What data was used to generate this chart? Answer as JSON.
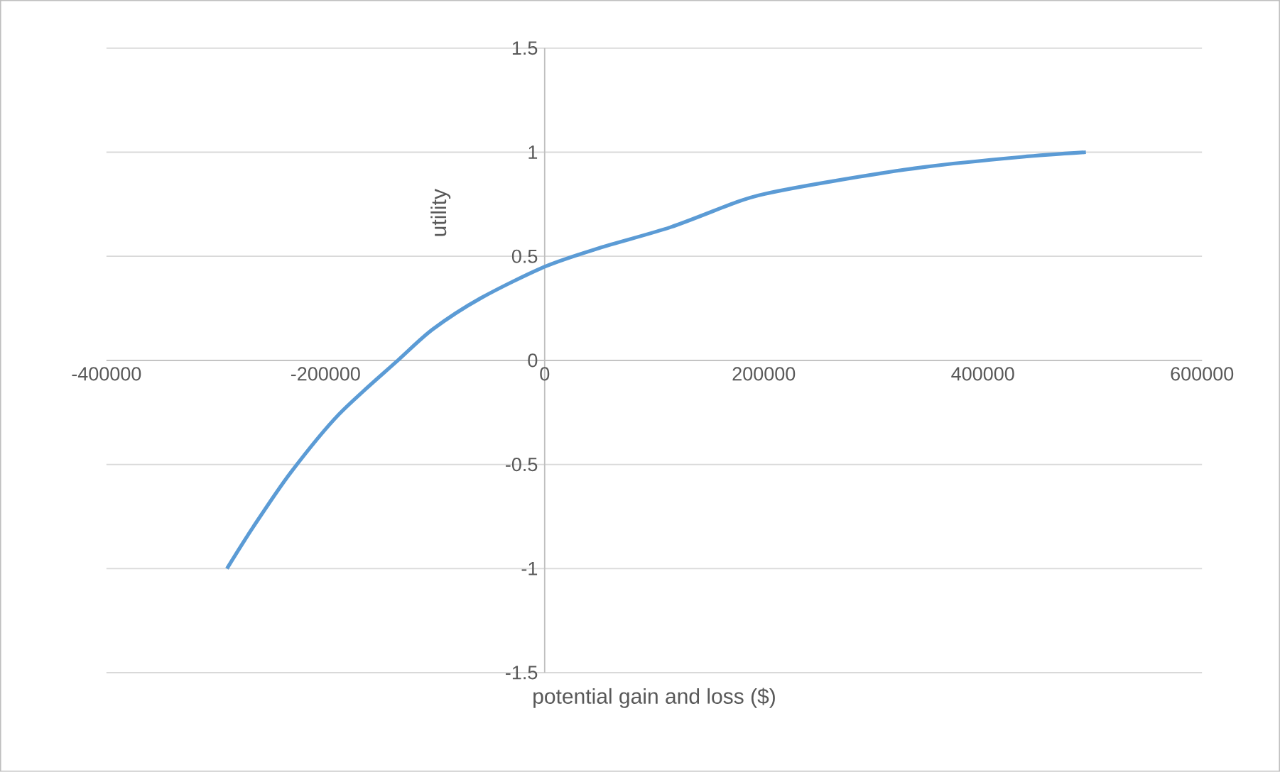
{
  "chart_data": {
    "type": "line",
    "xlabel": "potential gain and loss ($)",
    "ylabel": "utility",
    "x": [
      -290000,
      -266000,
      -232000,
      -188000,
      -134000,
      -102000,
      -58000,
      0,
      50000,
      115000,
      175000,
      201000,
      262000,
      348000,
      435000,
      494000
    ],
    "series": [
      {
        "color": "#5b9bd5",
        "values": [
          -1.0,
          -0.8,
          -0.54,
          -0.26,
          0,
          0.15,
          0.3,
          0.45,
          0.54,
          0.64,
          0.76,
          0.8,
          0.86,
          0.93,
          0.977,
          1.0
        ]
      }
    ],
    "xlim": [
      -400000,
      600000
    ],
    "ylim": [
      -1.5,
      1.5
    ],
    "xticks": [
      -400000,
      -200000,
      0,
      200000,
      400000,
      600000
    ],
    "yticks": [
      -1.5,
      -1,
      -0.5,
      0,
      0.5,
      1,
      1.5
    ],
    "grid": "y",
    "marker": "none",
    "line_style": "solid"
  }
}
